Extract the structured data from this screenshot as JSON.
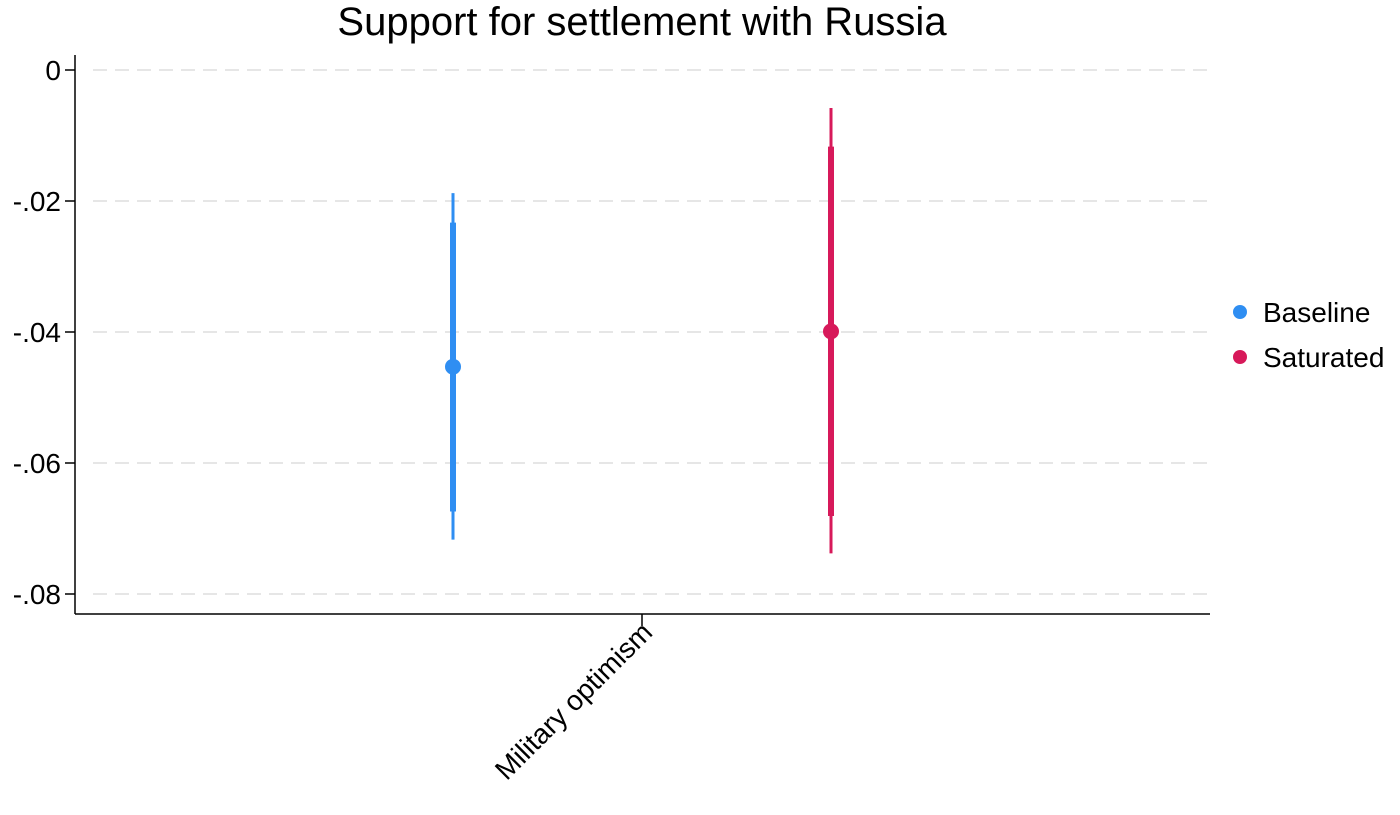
{
  "chart_data": {
    "type": "scatter",
    "title": "Support for settlement with Russia",
    "xlabel": "",
    "ylabel": "",
    "categories": [
      "Military optimism"
    ],
    "ylim": [
      -0.083,
      0.0
    ],
    "yticks": [
      0,
      -0.02,
      -0.04,
      -0.06,
      -0.08
    ],
    "ytick_labels": [
      "0",
      "-.02",
      "-.04",
      "-.06",
      "-.08"
    ],
    "grid": true,
    "legend_position": "right",
    "series": [
      {
        "name": "Baseline",
        "color": "#2f8ef2",
        "category": "Military optimism",
        "estimate": -0.0453,
        "ci_inner": [
          -0.0674,
          -0.0233
        ],
        "ci_outer": [
          -0.0717,
          -0.0188
        ]
      },
      {
        "name": "Saturated",
        "color": "#d7195a",
        "category": "Military optimism",
        "estimate": -0.0399,
        "ci_inner": [
          -0.0681,
          -0.0117
        ],
        "ci_outer": [
          -0.0738,
          -0.0058
        ]
      }
    ]
  }
}
